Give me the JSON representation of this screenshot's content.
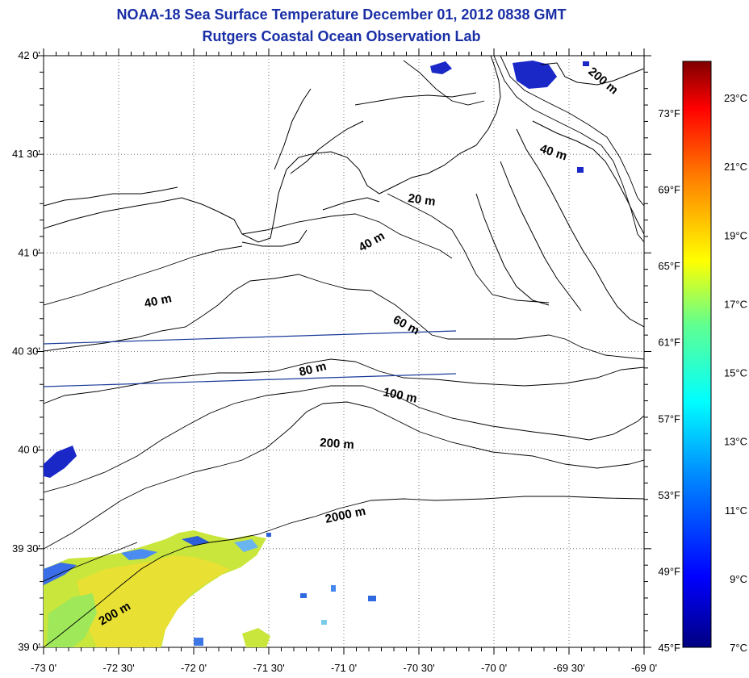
{
  "header": {
    "title": "NOAA-18 Sea Surface Temperature December 01, 2012 0838 GMT",
    "subtitle": "Rutgers Coastal Ocean Observation Lab"
  },
  "map": {
    "lon_range": [
      -73.0,
      -69.0
    ],
    "lat_range": [
      39.0,
      42.0
    ],
    "grid": true,
    "grid_style": "dotted",
    "x_tick_labels": [
      "-73 0'",
      "-72 30'",
      "-72 0'",
      "-71 30'",
      "-71 0'",
      "-70 30'",
      "-70 0'",
      "-69 30'",
      "-69 0'"
    ],
    "y_tick_labels": [
      "39 0'",
      "39 30'",
      "40 0'",
      "40 30'",
      "41 0'",
      "41 30'",
      "42 0'"
    ],
    "depth_labels": [
      {
        "text": "20 m"
      },
      {
        "text": "40 m"
      },
      {
        "text": "40 m"
      },
      {
        "text": "40 m"
      },
      {
        "text": "60 m"
      },
      {
        "text": "80 m"
      },
      {
        "text": "100 m"
      },
      {
        "text": "200 m"
      },
      {
        "text": "200 m"
      },
      {
        "text": "200 m"
      },
      {
        "text": "2000 m"
      }
    ]
  },
  "colorbar": {
    "celsius_labels": [
      "23°C",
      "21°C",
      "19°C",
      "17°C",
      "15°C",
      "13°C",
      "11°C",
      "9°C",
      "7°C"
    ],
    "fahrenheit_labels": [
      "73°F",
      "69°F",
      "65°F",
      "61°F",
      "57°F",
      "53°F",
      "49°F",
      "45°F"
    ],
    "colors": [
      "#7f0000",
      "#ff0000",
      "#ff8000",
      "#ffff00",
      "#80ff80",
      "#00ffff",
      "#0080ff",
      "#0000ff",
      "#000080"
    ]
  }
}
